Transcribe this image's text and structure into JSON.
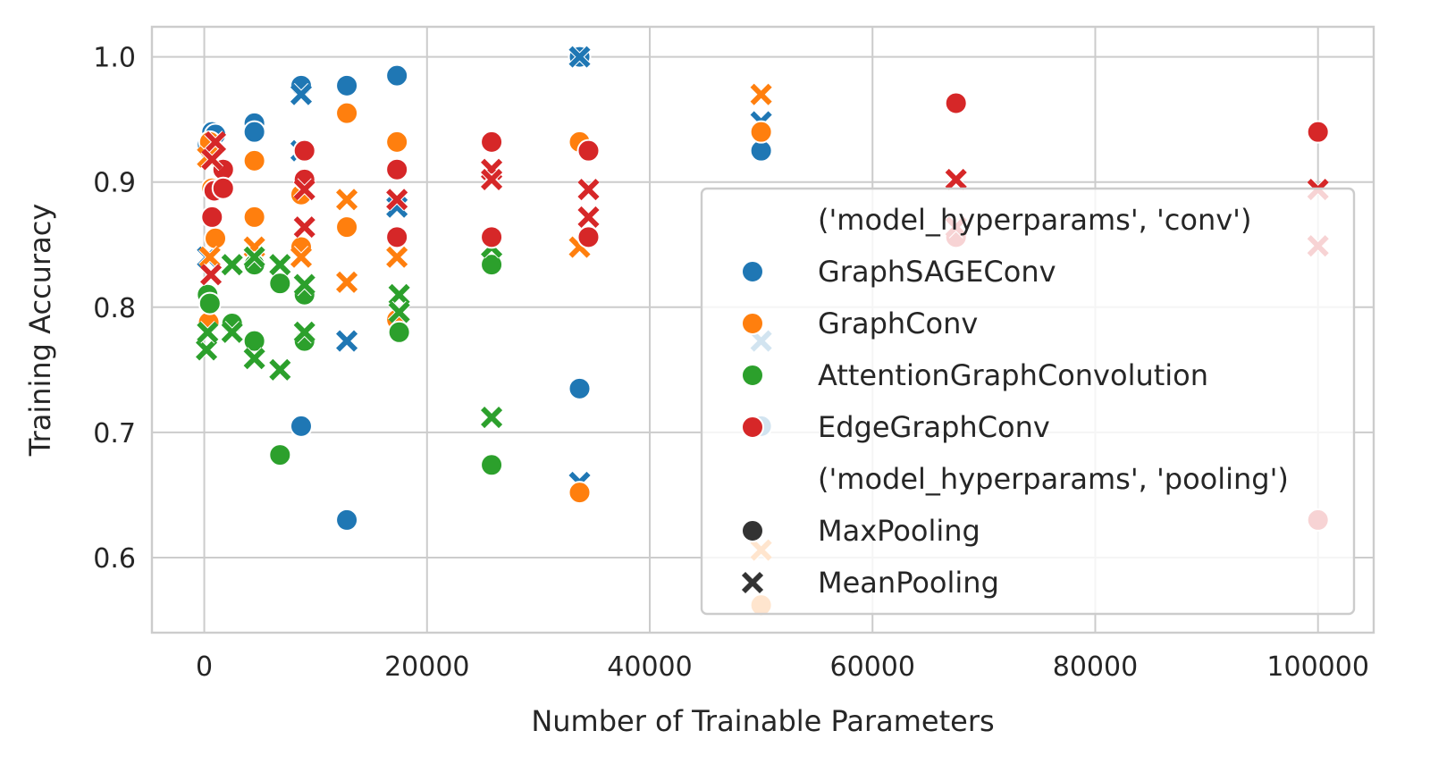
{
  "chart_data": {
    "type": "scatter",
    "title": "",
    "xlabel": "Number of Trainable Parameters",
    "ylabel": "Training Accuracy",
    "xlim": [
      -4700,
      105000
    ],
    "ylim": [
      0.54,
      1.024
    ],
    "xticks": [
      0,
      20000,
      40000,
      60000,
      80000,
      100000
    ],
    "xtick_labels": [
      "0",
      "20000",
      "40000",
      "60000",
      "80000",
      "100000"
    ],
    "yticks": [
      0.6,
      0.7,
      0.8,
      0.9,
      1.0
    ],
    "ytick_labels": [
      "0.6",
      "0.7",
      "0.8",
      "0.9",
      "1.0"
    ],
    "grid": true,
    "legend_placement": "lower-right",
    "legend": {
      "hue_title": "('model_hyperparams', 'conv')",
      "style_title": "('model_hyperparams', 'pooling')",
      "style_entries": [
        {
          "name": "MaxPooling",
          "marker": "circle"
        },
        {
          "name": "MeanPooling",
          "marker": "x"
        }
      ]
    },
    "series": [
      {
        "name": "GraphSAGEConv",
        "color": "#1f77b4",
        "points": [
          {
            "x": 300,
            "y": 0.93,
            "pool": "MaxPooling"
          },
          {
            "x": 700,
            "y": 0.94,
            "pool": "MaxPooling"
          },
          {
            "x": 1000,
            "y": 0.938,
            "pool": "MaxPooling"
          },
          {
            "x": 500,
            "y": 0.925,
            "pool": "MaxPooling"
          },
          {
            "x": 4500,
            "y": 0.947,
            "pool": "MaxPooling"
          },
          {
            "x": 4500,
            "y": 0.94,
            "pool": "MaxPooling"
          },
          {
            "x": 8700,
            "y": 0.977,
            "pool": "MaxPooling"
          },
          {
            "x": 8700,
            "y": 0.705,
            "pool": "MaxPooling"
          },
          {
            "x": 12800,
            "y": 0.977,
            "pool": "MaxPooling"
          },
          {
            "x": 12800,
            "y": 0.63,
            "pool": "MaxPooling"
          },
          {
            "x": 17300,
            "y": 0.985,
            "pool": "MaxPooling"
          },
          {
            "x": 33700,
            "y": 1.0,
            "pool": "MaxPooling"
          },
          {
            "x": 33700,
            "y": 0.735,
            "pool": "MaxPooling"
          },
          {
            "x": 50000,
            "y": 0.925,
            "pool": "MaxPooling"
          },
          {
            "x": 50000,
            "y": 0.705,
            "pool": "MaxPooling"
          },
          {
            "x": 300,
            "y": 0.84,
            "pool": "MeanPooling"
          },
          {
            "x": 8700,
            "y": 0.97,
            "pool": "MeanPooling"
          },
          {
            "x": 8700,
            "y": 0.925,
            "pool": "MeanPooling"
          },
          {
            "x": 12800,
            "y": 0.773,
            "pool": "MeanPooling"
          },
          {
            "x": 17300,
            "y": 0.88,
            "pool": "MeanPooling"
          },
          {
            "x": 33700,
            "y": 1.0,
            "pool": "MeanPooling"
          },
          {
            "x": 33700,
            "y": 0.66,
            "pool": "MeanPooling"
          },
          {
            "x": 50000,
            "y": 0.948,
            "pool": "MeanPooling"
          },
          {
            "x": 50000,
            "y": 0.773,
            "pool": "MeanPooling"
          }
        ]
      },
      {
        "name": "GraphConv",
        "color": "#ff7f0e",
        "points": [
          {
            "x": 500,
            "y": 0.932,
            "pool": "MaxPooling"
          },
          {
            "x": 700,
            "y": 0.895,
            "pool": "MaxPooling"
          },
          {
            "x": 1000,
            "y": 0.855,
            "pool": "MaxPooling"
          },
          {
            "x": 400,
            "y": 0.788,
            "pool": "MaxPooling"
          },
          {
            "x": 4500,
            "y": 0.917,
            "pool": "MaxPooling"
          },
          {
            "x": 4500,
            "y": 0.872,
            "pool": "MaxPooling"
          },
          {
            "x": 8700,
            "y": 0.89,
            "pool": "MaxPooling"
          },
          {
            "x": 8700,
            "y": 0.848,
            "pool": "MaxPooling"
          },
          {
            "x": 12800,
            "y": 0.955,
            "pool": "MaxPooling"
          },
          {
            "x": 12800,
            "y": 0.864,
            "pool": "MaxPooling"
          },
          {
            "x": 17300,
            "y": 0.932,
            "pool": "MaxPooling"
          },
          {
            "x": 17300,
            "y": 0.79,
            "pool": "MaxPooling"
          },
          {
            "x": 33700,
            "y": 0.932,
            "pool": "MaxPooling"
          },
          {
            "x": 33700,
            "y": 0.652,
            "pool": "MaxPooling"
          },
          {
            "x": 50000,
            "y": 0.94,
            "pool": "MaxPooling"
          },
          {
            "x": 50000,
            "y": 0.562,
            "pool": "MaxPooling"
          },
          {
            "x": 300,
            "y": 0.92,
            "pool": "MeanPooling"
          },
          {
            "x": 500,
            "y": 0.84,
            "pool": "MeanPooling"
          },
          {
            "x": 4500,
            "y": 0.848,
            "pool": "MeanPooling"
          },
          {
            "x": 8700,
            "y": 0.84,
            "pool": "MeanPooling"
          },
          {
            "x": 12800,
            "y": 0.886,
            "pool": "MeanPooling"
          },
          {
            "x": 12800,
            "y": 0.82,
            "pool": "MeanPooling"
          },
          {
            "x": 17300,
            "y": 0.84,
            "pool": "MeanPooling"
          },
          {
            "x": 33700,
            "y": 0.848,
            "pool": "MeanPooling"
          },
          {
            "x": 50000,
            "y": 0.97,
            "pool": "MeanPooling"
          },
          {
            "x": 50000,
            "y": 0.606,
            "pool": "MeanPooling"
          }
        ]
      },
      {
        "name": "AttentionGraphConvolution",
        "color": "#2ca02c",
        "points": [
          {
            "x": 300,
            "y": 0.81,
            "pool": "MaxPooling"
          },
          {
            "x": 500,
            "y": 0.803,
            "pool": "MaxPooling"
          },
          {
            "x": 2500,
            "y": 0.787,
            "pool": "MaxPooling"
          },
          {
            "x": 4500,
            "y": 0.834,
            "pool": "MaxPooling"
          },
          {
            "x": 4500,
            "y": 0.773,
            "pool": "MaxPooling"
          },
          {
            "x": 6800,
            "y": 0.819,
            "pool": "MaxPooling"
          },
          {
            "x": 6800,
            "y": 0.682,
            "pool": "MaxPooling"
          },
          {
            "x": 9000,
            "y": 0.81,
            "pool": "MaxPooling"
          },
          {
            "x": 9000,
            "y": 0.773,
            "pool": "MaxPooling"
          },
          {
            "x": 17500,
            "y": 0.78,
            "pool": "MaxPooling"
          },
          {
            "x": 25800,
            "y": 0.834,
            "pool": "MaxPooling"
          },
          {
            "x": 25800,
            "y": 0.674,
            "pool": "MaxPooling"
          },
          {
            "x": 200,
            "y": 0.766,
            "pool": "MeanPooling"
          },
          {
            "x": 300,
            "y": 0.78,
            "pool": "MeanPooling"
          },
          {
            "x": 2500,
            "y": 0.834,
            "pool": "MeanPooling"
          },
          {
            "x": 2500,
            "y": 0.78,
            "pool": "MeanPooling"
          },
          {
            "x": 4500,
            "y": 0.84,
            "pool": "MeanPooling"
          },
          {
            "x": 4500,
            "y": 0.759,
            "pool": "MeanPooling"
          },
          {
            "x": 6800,
            "y": 0.834,
            "pool": "MeanPooling"
          },
          {
            "x": 6800,
            "y": 0.75,
            "pool": "MeanPooling"
          },
          {
            "x": 9000,
            "y": 0.818,
            "pool": "MeanPooling"
          },
          {
            "x": 9000,
            "y": 0.78,
            "pool": "MeanPooling"
          },
          {
            "x": 17500,
            "y": 0.81,
            "pool": "MeanPooling"
          },
          {
            "x": 17500,
            "y": 0.796,
            "pool": "MeanPooling"
          },
          {
            "x": 25800,
            "y": 0.848,
            "pool": "MeanPooling"
          },
          {
            "x": 25800,
            "y": 0.712,
            "pool": "MeanPooling"
          }
        ]
      },
      {
        "name": "EdgeGraphConv",
        "color": "#d62728",
        "points": [
          {
            "x": 900,
            "y": 0.893,
            "pool": "MaxPooling"
          },
          {
            "x": 700,
            "y": 0.872,
            "pool": "MaxPooling"
          },
          {
            "x": 1700,
            "y": 0.91,
            "pool": "MaxPooling"
          },
          {
            "x": 1700,
            "y": 0.895,
            "pool": "MaxPooling"
          },
          {
            "x": 9000,
            "y": 0.925,
            "pool": "MaxPooling"
          },
          {
            "x": 9000,
            "y": 0.902,
            "pool": "MaxPooling"
          },
          {
            "x": 17300,
            "y": 0.91,
            "pool": "MaxPooling"
          },
          {
            "x": 17300,
            "y": 0.856,
            "pool": "MaxPooling"
          },
          {
            "x": 25800,
            "y": 0.932,
            "pool": "MaxPooling"
          },
          {
            "x": 25800,
            "y": 0.856,
            "pool": "MaxPooling"
          },
          {
            "x": 34500,
            "y": 0.925,
            "pool": "MaxPooling"
          },
          {
            "x": 34500,
            "y": 0.856,
            "pool": "MaxPooling"
          },
          {
            "x": 67500,
            "y": 0.963,
            "pool": "MaxPooling"
          },
          {
            "x": 67500,
            "y": 0.856,
            "pool": "MaxPooling"
          },
          {
            "x": 100000,
            "y": 0.94,
            "pool": "MaxPooling"
          },
          {
            "x": 100000,
            "y": 0.63,
            "pool": "MaxPooling"
          },
          {
            "x": 1000,
            "y": 0.932,
            "pool": "MeanPooling"
          },
          {
            "x": 700,
            "y": 0.918,
            "pool": "MeanPooling"
          },
          {
            "x": 600,
            "y": 0.826,
            "pool": "MeanPooling"
          },
          {
            "x": 9000,
            "y": 0.894,
            "pool": "MeanPooling"
          },
          {
            "x": 9000,
            "y": 0.864,
            "pool": "MeanPooling"
          },
          {
            "x": 17300,
            "y": 0.886,
            "pool": "MeanPooling"
          },
          {
            "x": 25800,
            "y": 0.91,
            "pool": "MeanPooling"
          },
          {
            "x": 25800,
            "y": 0.902,
            "pool": "MeanPooling"
          },
          {
            "x": 34500,
            "y": 0.894,
            "pool": "MeanPooling"
          },
          {
            "x": 34500,
            "y": 0.872,
            "pool": "MeanPooling"
          },
          {
            "x": 67500,
            "y": 0.902,
            "pool": "MeanPooling"
          },
          {
            "x": 67500,
            "y": 0.864,
            "pool": "MeanPooling"
          },
          {
            "x": 100000,
            "y": 0.894,
            "pool": "MeanPooling"
          },
          {
            "x": 100000,
            "y": 0.849,
            "pool": "MeanPooling"
          }
        ]
      }
    ]
  }
}
